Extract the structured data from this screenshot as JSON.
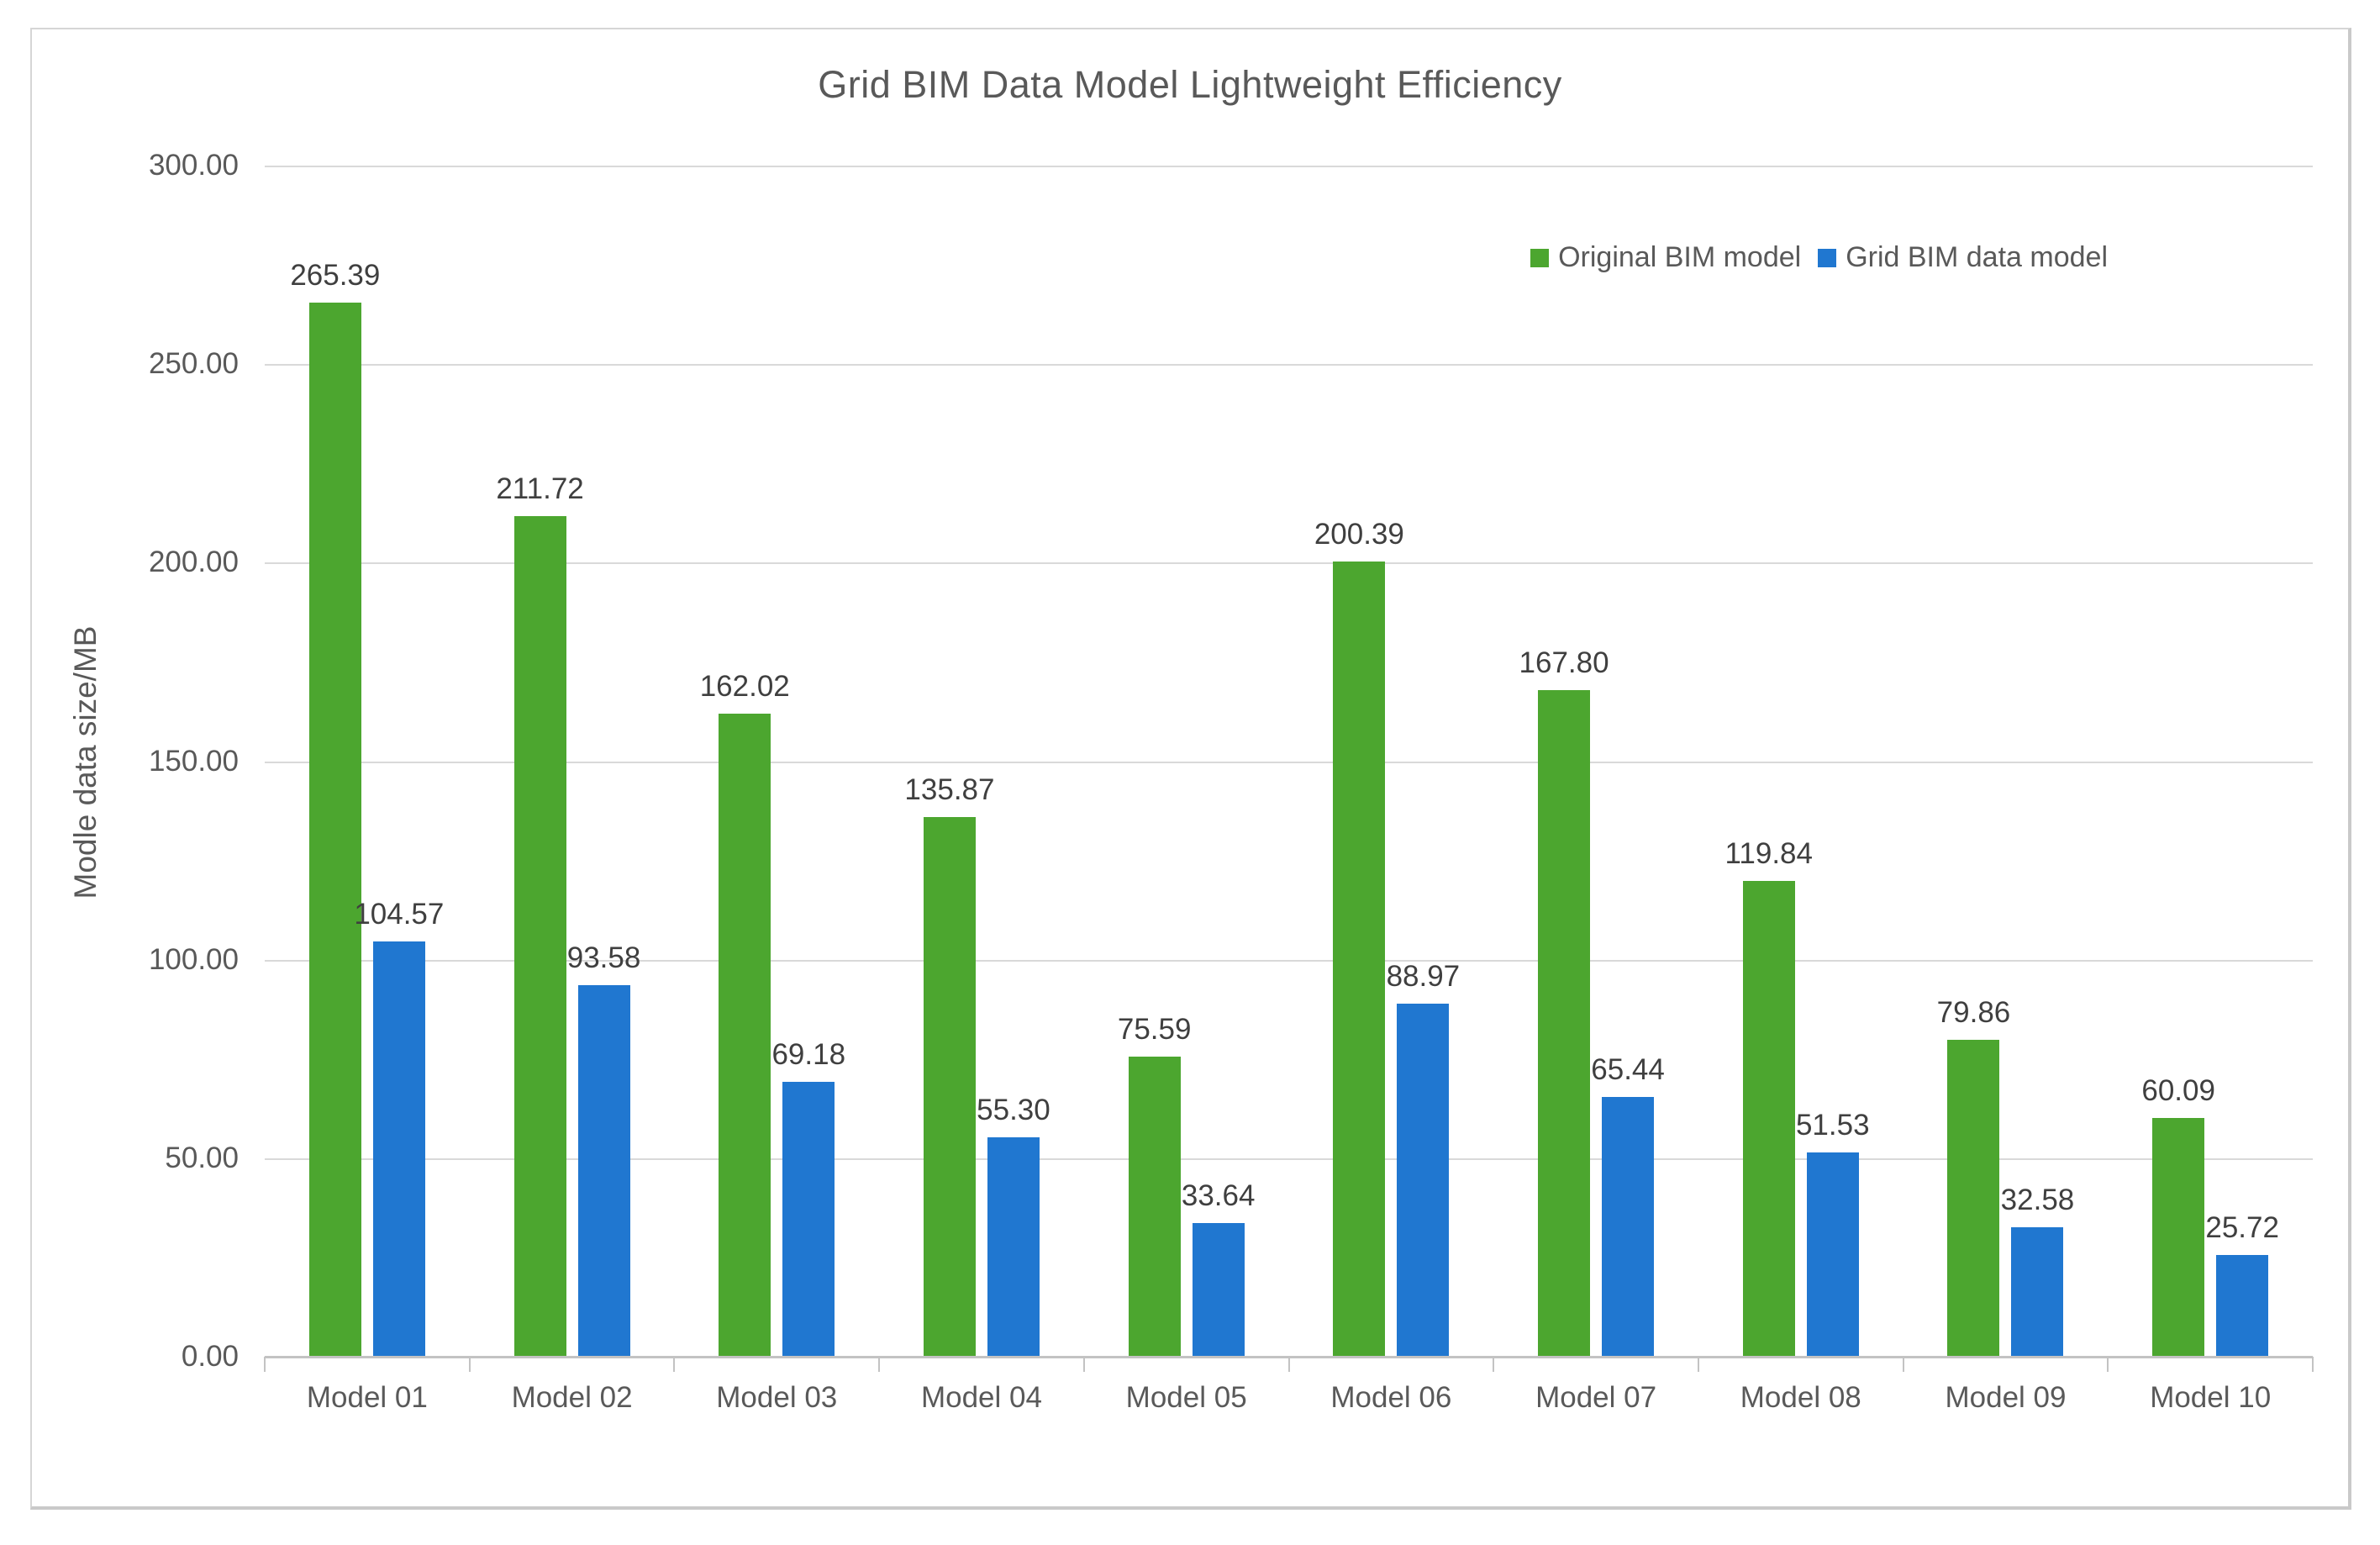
{
  "chart_data": {
    "type": "bar",
    "title": "Grid BIM Data Model Lightweight Efficiency",
    "xlabel": "",
    "ylabel": "Modle data size/MB",
    "categories": [
      "Model 01",
      "Model 02",
      "Model 03",
      "Model 04",
      "Model 05",
      "Model 06",
      "Model 07",
      "Model 08",
      "Model 09",
      "Model 10"
    ],
    "series": [
      {
        "name": "Original BIM model",
        "color": "#4CA62F",
        "values": [
          265.39,
          211.72,
          162.02,
          135.87,
          75.59,
          200.39,
          167.8,
          119.84,
          79.86,
          60.09
        ]
      },
      {
        "name": "Grid BIM data model",
        "color": "#2077D0",
        "values": [
          104.57,
          93.58,
          69.18,
          55.3,
          33.64,
          88.97,
          65.44,
          51.53,
          32.58,
          25.72
        ]
      }
    ],
    "ylim": [
      0,
      300
    ],
    "ytick_step": 50,
    "yticks": [
      "300.00",
      "250.00",
      "200.00",
      "150.00",
      "100.00",
      "50.00",
      "0.00"
    ],
    "grid": true,
    "legend_position": "top-right",
    "value_label_decimals": 2
  },
  "colors": {
    "gridline": "#d9d9d9",
    "axis_line": "#c3c3c3",
    "title_text": "#595959",
    "axis_text": "#595959",
    "value_label_text": "#3f3f3f",
    "frame_border": "#d6d6d6"
  }
}
